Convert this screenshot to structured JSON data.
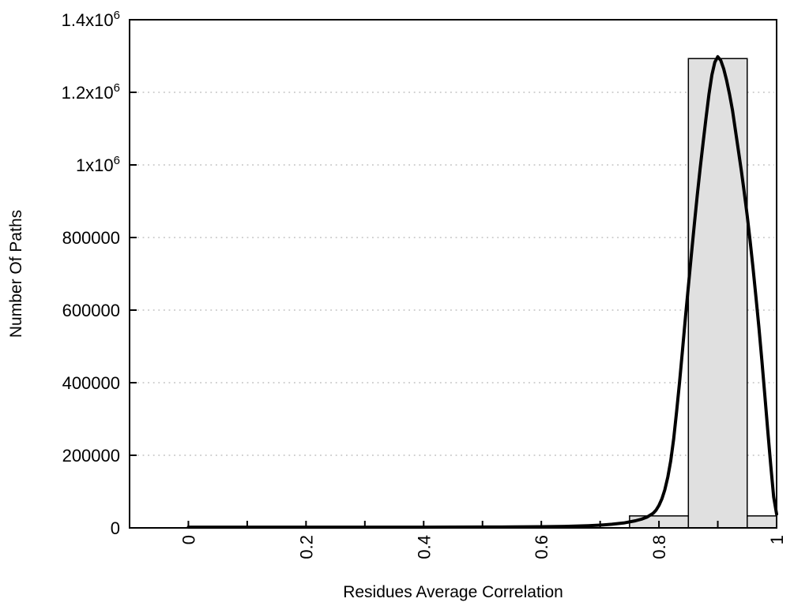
{
  "chart_data": {
    "type": "bar",
    "subtype": "histogram-with-smoothed-curve",
    "title": "",
    "xlabel": "Residues Average Correlation",
    "ylabel": "Number Of Paths",
    "xlim": [
      -0.1,
      1.0
    ],
    "ylim": [
      0,
      1400000
    ],
    "grid": "horizontal dotted lines at y major ticks",
    "legend": "none",
    "x_major_ticks": [
      0,
      0.2,
      0.4,
      0.6,
      0.8,
      1
    ],
    "x_tick_labels": [
      "0",
      "0.2",
      "0.4",
      "0.6",
      "0.8",
      "1"
    ],
    "x_tick_labels_rotated": true,
    "x_minor_ticks": [
      0,
      0.1,
      0.2,
      0.3,
      0.4,
      0.5,
      0.6,
      0.7,
      0.8,
      0.9,
      1
    ],
    "y_ticks": [
      {
        "value": 0,
        "label": "0",
        "sup": ""
      },
      {
        "value": 200000,
        "label": "200000",
        "sup": ""
      },
      {
        "value": 400000,
        "label": "400000",
        "sup": ""
      },
      {
        "value": 600000,
        "label": "600000",
        "sup": ""
      },
      {
        "value": 800000,
        "label": "800000",
        "sup": ""
      },
      {
        "value": 1000000,
        "label": "1x10",
        "sup": "6"
      },
      {
        "value": 1200000,
        "label": "1.2x10",
        "sup": "6"
      },
      {
        "value": 1400000,
        "label": "1.4x10",
        "sup": "6"
      }
    ],
    "bins": [
      {
        "from": 0.75,
        "to": 0.85,
        "count": 33000
      },
      {
        "from": 0.85,
        "to": 0.95,
        "count": 1293000
      },
      {
        "from": 0.95,
        "to": 1.0,
        "count": 33000
      }
    ],
    "curve": {
      "name": "smoothed path-count distribution",
      "peak": {
        "x": 0.9,
        "y": 1298000
      },
      "points": [
        [
          0,
          2000
        ],
        [
          0.05,
          2000
        ],
        [
          0.1,
          2000
        ],
        [
          0.15,
          2000
        ],
        [
          0.2,
          2000
        ],
        [
          0.25,
          2000
        ],
        [
          0.3,
          2000
        ],
        [
          0.35,
          2000
        ],
        [
          0.4,
          2000
        ],
        [
          0.45,
          2100
        ],
        [
          0.5,
          2300
        ],
        [
          0.55,
          2600
        ],
        [
          0.6,
          3200
        ],
        [
          0.64,
          4200
        ],
        [
          0.68,
          6000
        ],
        [
          0.7,
          7500
        ],
        [
          0.72,
          10000
        ],
        [
          0.74,
          13500
        ],
        [
          0.76,
          19500
        ],
        [
          0.77,
          24000
        ],
        [
          0.78,
          30000
        ],
        [
          0.79,
          40000
        ],
        [
          0.795,
          49000
        ],
        [
          0.8,
          62000
        ],
        [
          0.805,
          80000
        ],
        [
          0.81,
          105000
        ],
        [
          0.815,
          140000
        ],
        [
          0.82,
          185000
        ],
        [
          0.825,
          245000
        ],
        [
          0.83,
          320000
        ],
        [
          0.835,
          400000
        ],
        [
          0.84,
          490000
        ],
        [
          0.845,
          580000
        ],
        [
          0.85,
          665000
        ],
        [
          0.855,
          750000
        ],
        [
          0.86,
          835000
        ],
        [
          0.865,
          915000
        ],
        [
          0.87,
          990000
        ],
        [
          0.875,
          1060000
        ],
        [
          0.88,
          1130000
        ],
        [
          0.885,
          1195000
        ],
        [
          0.89,
          1248000
        ],
        [
          0.895,
          1283000
        ],
        [
          0.9,
          1298000
        ],
        [
          0.905,
          1288000
        ],
        [
          0.91,
          1265000
        ],
        [
          0.915,
          1233000
        ],
        [
          0.92,
          1195000
        ],
        [
          0.925,
          1150000
        ],
        [
          0.93,
          1095000
        ],
        [
          0.935,
          1040000
        ],
        [
          0.94,
          985000
        ],
        [
          0.945,
          925000
        ],
        [
          0.95,
          860000
        ],
        [
          0.955,
          790000
        ],
        [
          0.96,
          715000
        ],
        [
          0.965,
          635000
        ],
        [
          0.97,
          550000
        ],
        [
          0.975,
          460000
        ],
        [
          0.98,
          365000
        ],
        [
          0.985,
          268000
        ],
        [
          0.99,
          172000
        ],
        [
          0.995,
          85000
        ],
        [
          1,
          38000
        ]
      ]
    },
    "colors": {
      "background": "#ffffff",
      "bar_fill": "#e0e0e0",
      "bar_border": "#000000",
      "curve": "#000000",
      "axis": "#000000",
      "grid": "#b3b3b3",
      "text": "#000000"
    }
  }
}
